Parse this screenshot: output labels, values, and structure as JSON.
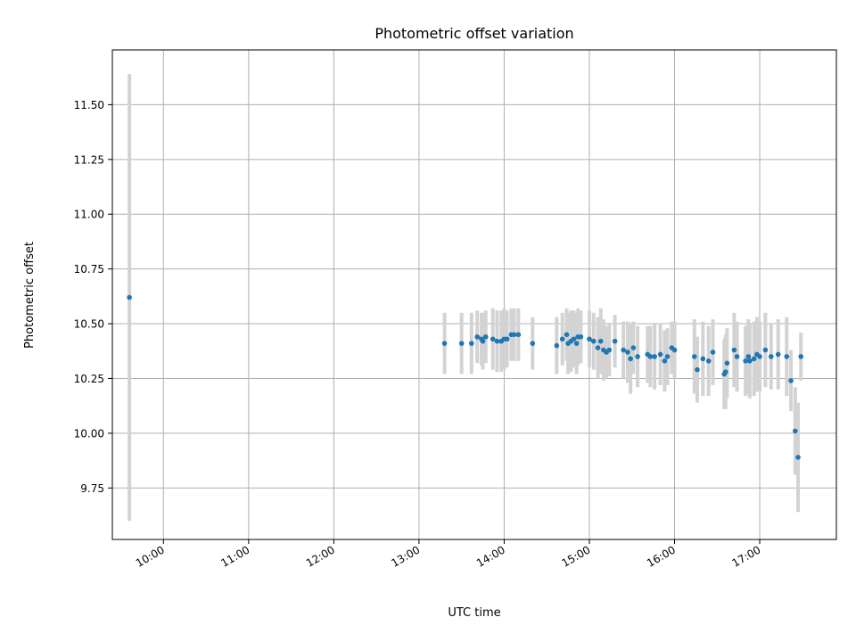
{
  "chart_data": {
    "type": "scatter",
    "title": "Photometric offset variation",
    "xlabel": "UTC time",
    "ylabel": "Photometric offset",
    "x_type": "time",
    "xlim": [
      "09:24",
      "17:54"
    ],
    "ylim": [
      9.515,
      11.75
    ],
    "x_ticks": [
      "10:00",
      "11:00",
      "12:00",
      "13:00",
      "14:00",
      "15:00",
      "16:00",
      "17:00"
    ],
    "y_ticks": [
      "9.75",
      "10.00",
      "10.25",
      "10.50",
      "10.75",
      "11.00",
      "11.25",
      "11.50"
    ],
    "grid": true,
    "colors": {
      "points": "#1f77b4",
      "errorbars": "#d3d3d3",
      "grid": "#b0b0b0"
    },
    "series": [
      {
        "x": [
          "09:36",
          "13:18",
          "13:30",
          "13:37",
          "13:41",
          "13:44",
          "13:45",
          "13:47",
          "13:52",
          "13:55",
          "13:58",
          "14:00",
          "14:02",
          "14:05",
          "14:07",
          "14:10",
          "14:20",
          "14:37",
          "14:41",
          "14:44",
          "14:45",
          "14:47",
          "14:49",
          "14:51",
          "14:52",
          "14:54",
          "15:00",
          "15:03",
          "15:06",
          "15:08",
          "15:10",
          "15:12",
          "15:14",
          "15:18",
          "15:24",
          "15:27",
          "15:29",
          "15:31",
          "15:34",
          "15:41",
          "15:43",
          "15:46",
          "15:50",
          "15:53",
          "15:55",
          "15:58",
          "16:00",
          "16:14",
          "16:16",
          "16:20",
          "16:24",
          "16:27",
          "16:35",
          "16:36",
          "16:37",
          "16:42",
          "16:44",
          "16:50",
          "16:52",
          "16:53",
          "16:56",
          "16:58",
          "17:00",
          "17:04",
          "17:08",
          "17:13",
          "17:19",
          "17:22",
          "17:25",
          "17:27",
          "17:29"
        ],
        "y": [
          10.62,
          10.41,
          10.41,
          10.41,
          10.44,
          10.43,
          10.42,
          10.44,
          10.43,
          10.42,
          10.42,
          10.43,
          10.43,
          10.45,
          10.45,
          10.45,
          10.41,
          10.4,
          10.43,
          10.45,
          10.41,
          10.42,
          10.43,
          10.41,
          10.44,
          10.44,
          10.43,
          10.42,
          10.39,
          10.42,
          10.38,
          10.37,
          10.38,
          10.42,
          10.38,
          10.37,
          10.34,
          10.39,
          10.35,
          10.36,
          10.35,
          10.35,
          10.36,
          10.33,
          10.35,
          10.39,
          10.38,
          10.35,
          10.29,
          10.34,
          10.33,
          10.37,
          10.27,
          10.28,
          10.32,
          10.38,
          10.35,
          10.33,
          10.35,
          10.33,
          10.34,
          10.36,
          10.35,
          10.38,
          10.35,
          10.36,
          10.35,
          10.24,
          10.01,
          9.89,
          10.35
        ],
        "yerr": [
          1.02,
          0.14,
          0.14,
          0.14,
          0.12,
          0.12,
          0.13,
          0.12,
          0.14,
          0.14,
          0.14,
          0.14,
          0.13,
          0.12,
          0.12,
          0.12,
          0.12,
          0.13,
          0.12,
          0.12,
          0.14,
          0.14,
          0.13,
          0.14,
          0.13,
          0.12,
          0.13,
          0.13,
          0.14,
          0.15,
          0.14,
          0.12,
          0.12,
          0.12,
          0.13,
          0.14,
          0.16,
          0.12,
          0.14,
          0.13,
          0.14,
          0.15,
          0.14,
          0.14,
          0.13,
          0.12,
          0.13,
          0.17,
          0.15,
          0.17,
          0.16,
          0.15,
          0.16,
          0.17,
          0.16,
          0.17,
          0.16,
          0.16,
          0.17,
          0.17,
          0.17,
          0.17,
          0.16,
          0.17,
          0.15,
          0.16,
          0.18,
          0.14,
          0.2,
          0.25,
          0.11
        ]
      }
    ]
  }
}
